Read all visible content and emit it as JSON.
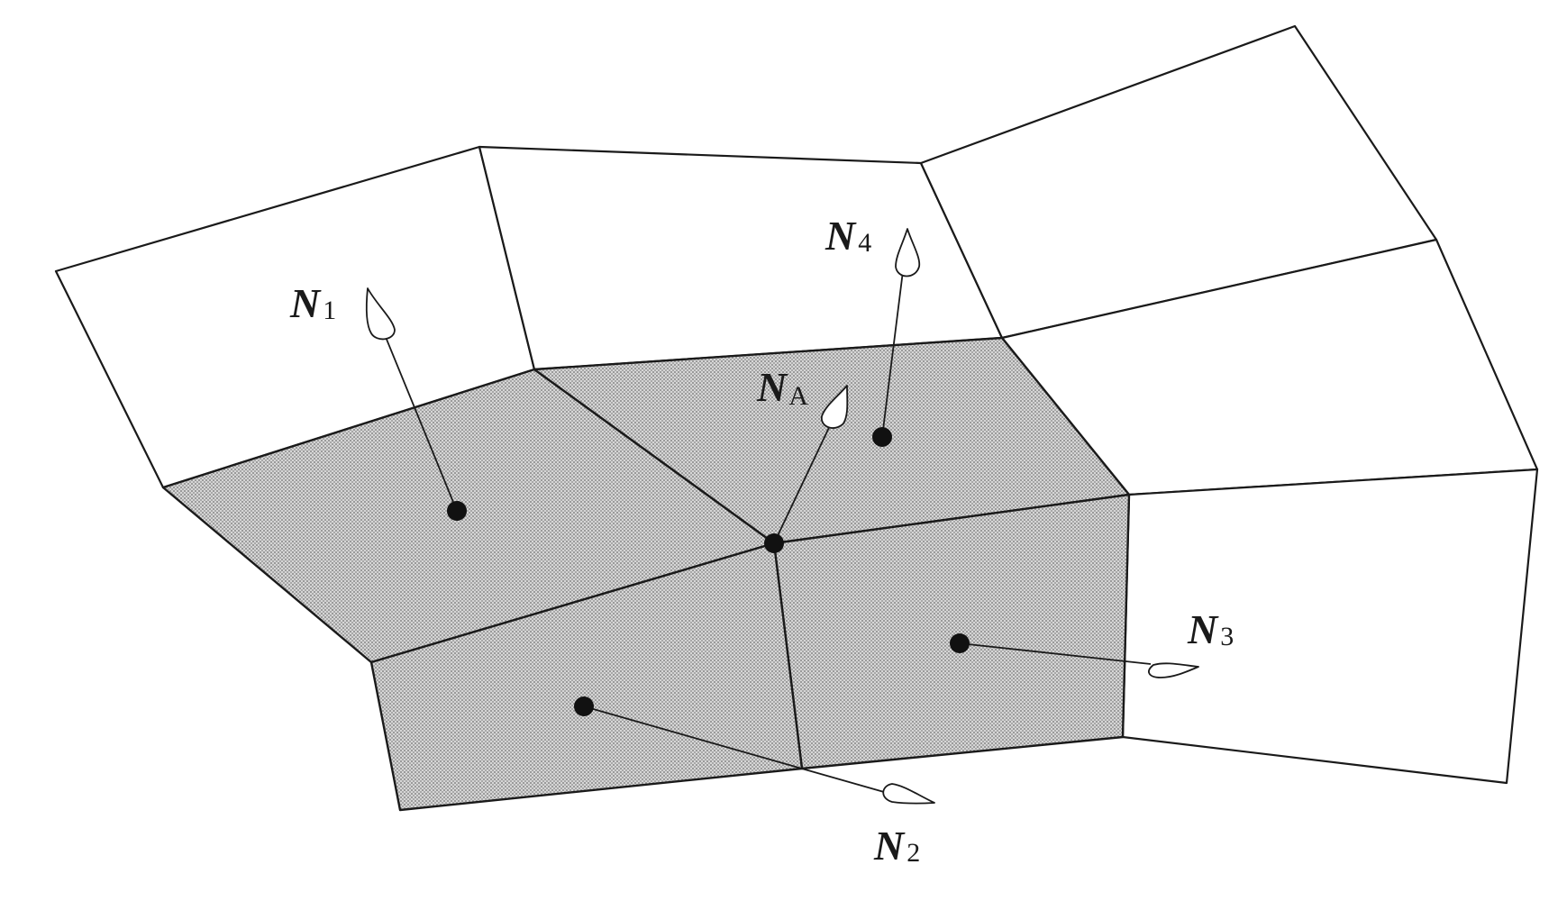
{
  "diagram": {
    "labels": {
      "n1": {
        "main": "N",
        "sub": "1"
      },
      "n2": {
        "main": "N",
        "sub": "2"
      },
      "n3": {
        "main": "N",
        "sub": "3"
      },
      "n4": {
        "main": "N",
        "sub": "4"
      },
      "na": {
        "main": "N",
        "sub": "A"
      }
    },
    "colors": {
      "line": "#1a1a1a",
      "shaded_fill": "#bdbdbd",
      "dot": "#111111",
      "background": "#ffffff"
    }
  }
}
